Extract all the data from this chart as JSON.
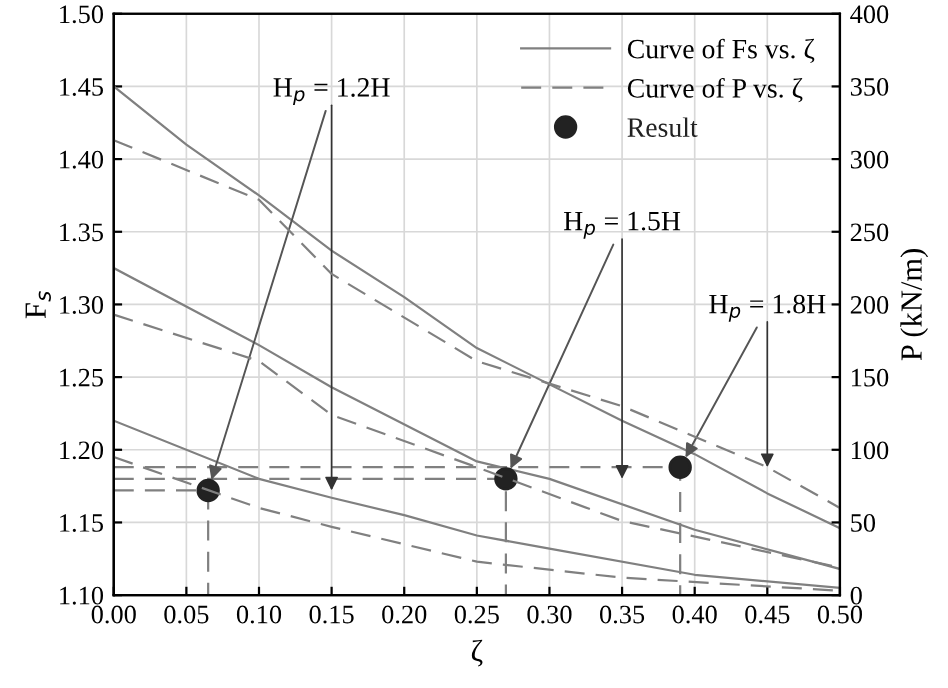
{
  "chart_data": {
    "type": "line",
    "xlabel": "ζ",
    "ylabel": "F$_{s}$",
    "y2label": "P (kN/m)",
    "xlim": [
      0,
      0.5
    ],
    "xticks": [
      {
        "value": 0,
        "label": "0.00"
      },
      {
        "value": 0.05,
        "label": "0.05"
      },
      {
        "value": 0.1,
        "label": "0.10"
      },
      {
        "value": 0.15,
        "label": "0.15"
      },
      {
        "value": 0.2,
        "label": "0.20"
      },
      {
        "value": 0.25,
        "label": "0.25"
      },
      {
        "value": 0.3,
        "label": "0.30"
      },
      {
        "value": 0.35,
        "label": "0.35"
      },
      {
        "value": 0.4,
        "label": "0.40"
      },
      {
        "value": 0.45,
        "label": "0.45"
      },
      {
        "value": 0.5,
        "label": "0.50"
      }
    ],
    "ylim": [
      1.1,
      1.5
    ],
    "yticks": [
      {
        "value": 1.1,
        "label": "1.10"
      },
      {
        "value": 1.15,
        "label": "1.15"
      },
      {
        "value": 1.2,
        "label": "1.20"
      },
      {
        "value": 1.25,
        "label": "1.25"
      },
      {
        "value": 1.3,
        "label": "1.30"
      },
      {
        "value": 1.35,
        "label": "1.35"
      },
      {
        "value": 1.4,
        "label": "1.40"
      },
      {
        "value": 1.45,
        "label": "1.45"
      },
      {
        "value": 1.5,
        "label": "1.50"
      }
    ],
    "y2lim": [
      0,
      400
    ],
    "y2ticks": [
      0,
      50,
      100,
      150,
      200,
      250,
      300,
      350,
      400
    ],
    "grid": true,
    "legend": "top right",
    "series": [
      {
        "name": "Curve of Fs vs. ζ",
        "color": "#808080",
        "line_style": "solid",
        "x": [
          0,
          0.05,
          0.1,
          0.15,
          0.2,
          0.25,
          0.3,
          0.35,
          0.4,
          0.45,
          0.5
        ],
        "values": [
          1.45,
          1.41,
          1.375,
          1.337,
          1.305,
          1.27,
          1.245,
          1.22,
          1.197,
          1.17,
          1.146
        ]
      },
      {
        "color": "#808080",
        "line_style": "solid",
        "x": [
          0,
          0.1,
          0.15,
          0.25,
          0.3,
          0.4,
          0.5
        ],
        "values": [
          1.325,
          1.272,
          1.243,
          1.192,
          1.18,
          1.145,
          1.118
        ]
      },
      {
        "color": "#808080",
        "line_style": "solid",
        "x": [
          0,
          0.1,
          0.15,
          0.2,
          0.25,
          0.3,
          0.4,
          0.5
        ],
        "values": [
          1.22,
          1.18,
          1.167,
          1.155,
          1.141,
          1.132,
          1.114,
          1.105
        ]
      },
      {
        "name": "Curve of P vs. ζ",
        "color": "#808080",
        "line_style": "dashed",
        "axis": "y2",
        "x": [
          0,
          0.1,
          0.15,
          0.25,
          0.35,
          0.45,
          0.5
        ],
        "values": [
          313,
          272,
          221,
          161,
          130,
          88,
          60
        ]
      },
      {
        "color": "#808080",
        "line_style": "dashed",
        "axis": "y2",
        "x": [
          0,
          0.1,
          0.15,
          0.25,
          0.35,
          0.5
        ],
        "values": [
          193,
          161,
          124,
          88,
          51,
          19
        ]
      },
      {
        "color": "#808080",
        "line_style": "dashed",
        "axis": "y2",
        "x": [
          0,
          0.1,
          0.15,
          0.25,
          0.35,
          0.5
        ],
        "values": [
          95,
          60,
          47,
          23,
          12,
          3
        ]
      },
      {
        "color": "#808080",
        "line_style": "dashed",
        "x": [
          0,
          0.065,
          0.065
        ],
        "values": [
          1.172,
          1.172,
          1.1
        ]
      },
      {
        "color": "#808080",
        "line_style": "dashed",
        "x": [
          0,
          0.27,
          0.27
        ],
        "values": [
          1.18,
          1.18,
          1.1
        ]
      },
      {
        "color": "#808080",
        "line_style": "dashed",
        "x": [
          0,
          0.39,
          0.39
        ],
        "values": [
          1.188,
          1.188,
          1.1
        ]
      },
      {
        "name": "Result",
        "type": "scatter",
        "marker": "circle",
        "color": "#222222",
        "x": [
          0.065,
          0.27,
          0.39
        ],
        "values": [
          1.172,
          1.18,
          1.188
        ]
      }
    ],
    "annotations": [
      {
        "text": "H$_{p}$ = 1.2H",
        "x": 0.065,
        "y": 1.172
      },
      {
        "text": "H$_{p}$ = 1.5H",
        "x": 0.27,
        "y": 1.18
      },
      {
        "text": "H$_{p}$ = 1.8H",
        "x": 0.39,
        "y": 1.188
      }
    ]
  }
}
